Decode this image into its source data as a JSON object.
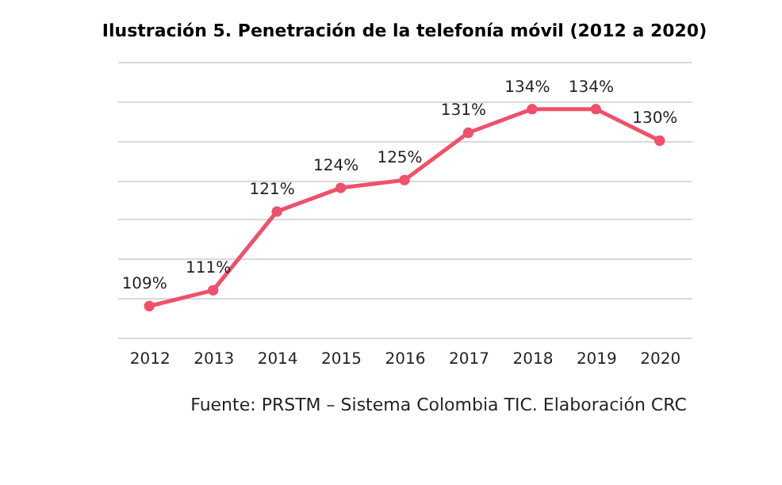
{
  "chart_data": {
    "type": "line",
    "title": "Ilustración 5. Penetración de la telefonía móvil (2012 a 2020)",
    "categories": [
      "2012",
      "2013",
      "2014",
      "2015",
      "2016",
      "2017",
      "2018",
      "2019",
      "2020"
    ],
    "series": [
      {
        "color": "#f0506a",
        "values": [
          109,
          111,
          121,
          124,
          125,
          131,
          134,
          134,
          130
        ],
        "value_labels": [
          "109%",
          "111%",
          "121%",
          "124%",
          "125%",
          "131%",
          "134%",
          "134%",
          "130%"
        ]
      }
    ],
    "tick_labels": "x",
    "grid": "y",
    "marker": "circle",
    "line_style": "solid",
    "annotations": [
      "Fuente: PRSTM – Sistema Colombia TIC. Elaboración CRC"
    ]
  }
}
